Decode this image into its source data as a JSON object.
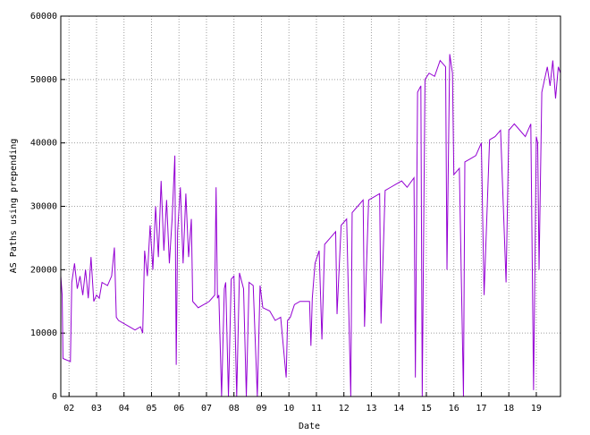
{
  "chart_data": {
    "type": "line",
    "x_label": "Date",
    "y_label": "AS Paths using prepending",
    "xlim": [
      2001.7,
      2019.88
    ],
    "ylim": [
      0,
      60000
    ],
    "xticks": [
      {
        "value": 2002,
        "label": "02"
      },
      {
        "value": 2003,
        "label": "03"
      },
      {
        "value": 2004,
        "label": "04"
      },
      {
        "value": 2005,
        "label": "05"
      },
      {
        "value": 2006,
        "label": "06"
      },
      {
        "value": 2007,
        "label": "07"
      },
      {
        "value": 2008,
        "label": "08"
      },
      {
        "value": 2009,
        "label": "09"
      },
      {
        "value": 2010,
        "label": "10"
      },
      {
        "value": 2011,
        "label": "11"
      },
      {
        "value": 2012,
        "label": "12"
      },
      {
        "value": 2013,
        "label": "13"
      },
      {
        "value": 2014,
        "label": "14"
      },
      {
        "value": 2015,
        "label": "15"
      },
      {
        "value": 2016,
        "label": "16"
      },
      {
        "value": 2017,
        "label": "17"
      },
      {
        "value": 2018,
        "label": "18"
      },
      {
        "value": 2019,
        "label": "19"
      }
    ],
    "yticks": [
      0,
      10000,
      20000,
      30000,
      40000,
      50000,
      60000
    ],
    "grid": true,
    "color": "#9400d3",
    "x": [
      2001.7,
      2001.75,
      2001.78,
      2002.05,
      2002.1,
      2002.2,
      2002.3,
      2002.4,
      2002.5,
      2002.6,
      2002.7,
      2002.8,
      2002.9,
      2003.0,
      2003.1,
      2003.2,
      2003.4,
      2003.55,
      2003.65,
      2003.72,
      2003.8,
      2004.0,
      2004.2,
      2004.4,
      2004.6,
      2004.68,
      2004.75,
      2004.85,
      2004.95,
      2005.05,
      2005.15,
      2005.25,
      2005.35,
      2005.45,
      2005.55,
      2005.65,
      2005.75,
      2005.85,
      2005.9,
      2005.95,
      2006.05,
      2006.15,
      2006.25,
      2006.35,
      2006.45,
      2006.5,
      2006.7,
      2006.9,
      2007.1,
      2007.3,
      2007.35,
      2007.4,
      2007.45,
      2007.55,
      2007.65,
      2007.7,
      2007.8,
      2007.9,
      2008.0,
      2008.1,
      2008.2,
      2008.35,
      2008.45,
      2008.55,
      2008.7,
      2008.85,
      2008.95,
      2009.05,
      2009.3,
      2009.5,
      2009.7,
      2009.9,
      2009.95,
      2010.05,
      2010.2,
      2010.4,
      2010.75,
      2010.8,
      2010.85,
      2010.95,
      2011.1,
      2011.2,
      2011.3,
      2011.5,
      2011.7,
      2011.75,
      2011.9,
      2012.1,
      2012.25,
      2012.3,
      2012.5,
      2012.7,
      2012.75,
      2012.9,
      2013.1,
      2013.3,
      2013.35,
      2013.5,
      2013.7,
      2013.9,
      2014.1,
      2014.3,
      2014.55,
      2014.6,
      2014.68,
      2014.8,
      2014.85,
      2014.95,
      2015.1,
      2015.3,
      2015.5,
      2015.7,
      2015.75,
      2015.85,
      2015.95,
      2016.0,
      2016.2,
      2016.35,
      2016.4,
      2016.6,
      2016.8,
      2017.0,
      2017.1,
      2017.3,
      2017.5,
      2017.7,
      2017.9,
      2018.0,
      2018.2,
      2018.4,
      2018.6,
      2018.8,
      2018.9,
      2019.0,
      2019.05,
      2019.1,
      2019.2,
      2019.3,
      2019.4,
      2019.5,
      2019.6,
      2019.7,
      2019.8,
      2019.88
    ],
    "values": [
      19000,
      16000,
      6000,
      5500,
      18000,
      21000,
      17000,
      19000,
      16000,
      20000,
      15500,
      22000,
      15000,
      16000,
      15500,
      18000,
      17500,
      19000,
      23500,
      12500,
      12000,
      11500,
      11000,
      10500,
      11000,
      10000,
      23000,
      19000,
      27000,
      20000,
      30000,
      22000,
      34000,
      23000,
      31000,
      21000,
      28000,
      38000,
      5000,
      26000,
      33000,
      21000,
      32000,
      22000,
      28000,
      15000,
      14000,
      14500,
      15000,
      16000,
      33000,
      15500,
      16000,
      0,
      17000,
      18000,
      0,
      18500,
      19000,
      0,
      19500,
      17000,
      0,
      18000,
      17500,
      0,
      17500,
      14000,
      13500,
      12000,
      12500,
      3000,
      12000,
      12500,
      14500,
      15000,
      15000,
      8000,
      15500,
      21000,
      23000,
      9000,
      24000,
      25000,
      26000,
      13000,
      27000,
      28000,
      0,
      29000,
      30000,
      31000,
      11000,
      31000,
      31500,
      32000,
      11500,
      32500,
      33000,
      33500,
      34000,
      33000,
      34500,
      3000,
      48000,
      49000,
      0,
      50000,
      51000,
      50500,
      53000,
      52000,
      20000,
      54000,
      51000,
      35000,
      36000,
      0,
      37000,
      37500,
      38000,
      40000,
      16000,
      40500,
      41000,
      42000,
      18000,
      42000,
      43000,
      42000,
      41000,
      43000,
      1000,
      41000,
      40000,
      20000,
      48000,
      50000,
      52000,
      49000,
      53000,
      47000,
      52000,
      51000
    ]
  }
}
